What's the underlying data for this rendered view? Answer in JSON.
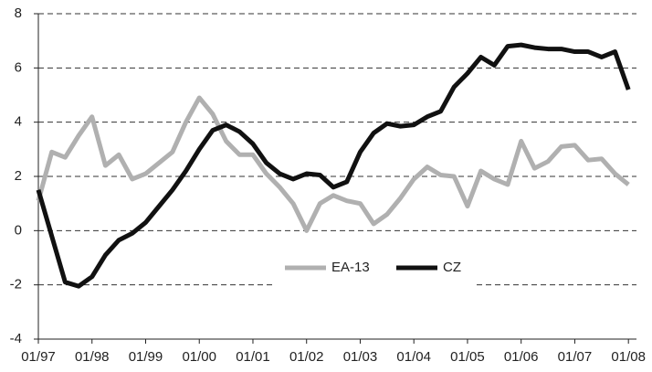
{
  "chart_data": {
    "type": "line",
    "x": [
      1997,
      1997.25,
      1997.5,
      1997.75,
      1998,
      1998.25,
      1998.5,
      1998.75,
      1999,
      1999.25,
      1999.5,
      1999.75,
      2000,
      2000.25,
      2000.5,
      2000.75,
      2001,
      2001.25,
      2001.5,
      2001.75,
      2002,
      2002.25,
      2002.5,
      2002.75,
      2003,
      2003.25,
      2003.5,
      2003.75,
      2004,
      2004.25,
      2004.5,
      2004.75,
      2005,
      2005.25,
      2005.5,
      2005.75,
      2006,
      2006.25,
      2006.5,
      2006.75,
      2007,
      2007.25,
      2007.5,
      2007.75,
      2008
    ],
    "series": [
      {
        "name": "EA-13",
        "color": "#b0b0b0",
        "values": [
          1.1,
          2.9,
          2.7,
          3.5,
          4.2,
          2.4,
          2.8,
          1.9,
          2.1,
          2.5,
          2.9,
          4.0,
          4.9,
          4.3,
          3.3,
          2.8,
          2.8,
          2.1,
          1.6,
          1.0,
          0.0,
          1.0,
          1.3,
          1.1,
          1.0,
          0.25,
          0.6,
          1.2,
          1.9,
          2.35,
          2.05,
          2.0,
          0.9,
          2.2,
          1.9,
          1.7,
          3.3,
          2.3,
          2.55,
          3.1,
          3.15,
          2.6,
          2.65,
          2.1,
          1.7
        ]
      },
      {
        "name": "CZ",
        "color": "#111111",
        "values": [
          1.5,
          -0.2,
          -1.9,
          -2.05,
          -1.7,
          -0.9,
          -0.35,
          -0.1,
          0.3,
          0.9,
          1.5,
          2.2,
          3.0,
          3.7,
          3.9,
          3.65,
          3.2,
          2.5,
          2.1,
          1.9,
          2.1,
          2.05,
          1.6,
          1.8,
          2.9,
          3.6,
          3.95,
          3.85,
          3.9,
          4.2,
          4.4,
          5.3,
          5.8,
          6.4,
          6.1,
          6.8,
          6.85,
          6.75,
          6.7,
          6.7,
          6.6,
          6.6,
          6.4,
          6.6,
          5.2
        ]
      }
    ],
    "xlim": [
      1997,
      2008.15
    ],
    "xticks": [
      {
        "value": 1997,
        "label": "01/97"
      },
      {
        "value": 1998,
        "label": "01/98"
      },
      {
        "value": 1999,
        "label": "01/99"
      },
      {
        "value": 2000,
        "label": "01/00"
      },
      {
        "value": 2001,
        "label": "01/01"
      },
      {
        "value": 2002,
        "label": "01/02"
      },
      {
        "value": 2003,
        "label": "01/03"
      },
      {
        "value": 2004,
        "label": "01/04"
      },
      {
        "value": 2005,
        "label": "01/05"
      },
      {
        "value": 2006,
        "label": "01/06"
      },
      {
        "value": 2007,
        "label": "01/07"
      },
      {
        "value": 2008,
        "label": "01/08"
      }
    ],
    "ylim": [
      -4,
      8
    ],
    "yticks": [
      -4,
      -2,
      0,
      2,
      4,
      6,
      8
    ],
    "grid": true,
    "legend": "center"
  }
}
